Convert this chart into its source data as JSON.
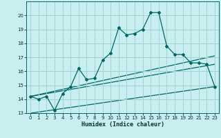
{
  "title": "",
  "xlabel": "Humidex (Indice chaleur)",
  "bg_color": "#c8eef0",
  "grid_color": "#a0d4d0",
  "line_color": "#006666",
  "xlim": [
    -0.5,
    23.5
  ],
  "ylim": [
    13,
    21
  ],
  "yticks": [
    13,
    14,
    15,
    16,
    17,
    18,
    19,
    20
  ],
  "xticks": [
    0,
    1,
    2,
    3,
    4,
    5,
    6,
    7,
    8,
    9,
    10,
    11,
    12,
    13,
    14,
    15,
    16,
    17,
    18,
    19,
    20,
    21,
    22,
    23
  ],
  "line1_x": [
    0,
    1,
    2,
    3,
    4,
    5,
    6,
    7,
    8,
    9,
    10,
    11,
    12,
    13,
    14,
    15,
    16,
    17,
    18,
    19,
    20,
    21,
    22,
    23
  ],
  "line1_y": [
    14.2,
    14.0,
    14.2,
    13.2,
    14.4,
    14.9,
    16.2,
    15.4,
    15.5,
    16.8,
    17.3,
    19.1,
    18.6,
    18.7,
    19.0,
    20.2,
    20.2,
    17.8,
    17.2,
    17.2,
    16.6,
    16.6,
    16.5,
    14.9
  ],
  "line2_x": [
    0,
    23
  ],
  "line2_y": [
    14.2,
    17.1
  ],
  "line3_x": [
    0,
    23
  ],
  "line3_y": [
    14.2,
    16.5
  ],
  "line4_x": [
    0,
    23
  ],
  "line4_y": [
    13.0,
    14.9
  ]
}
